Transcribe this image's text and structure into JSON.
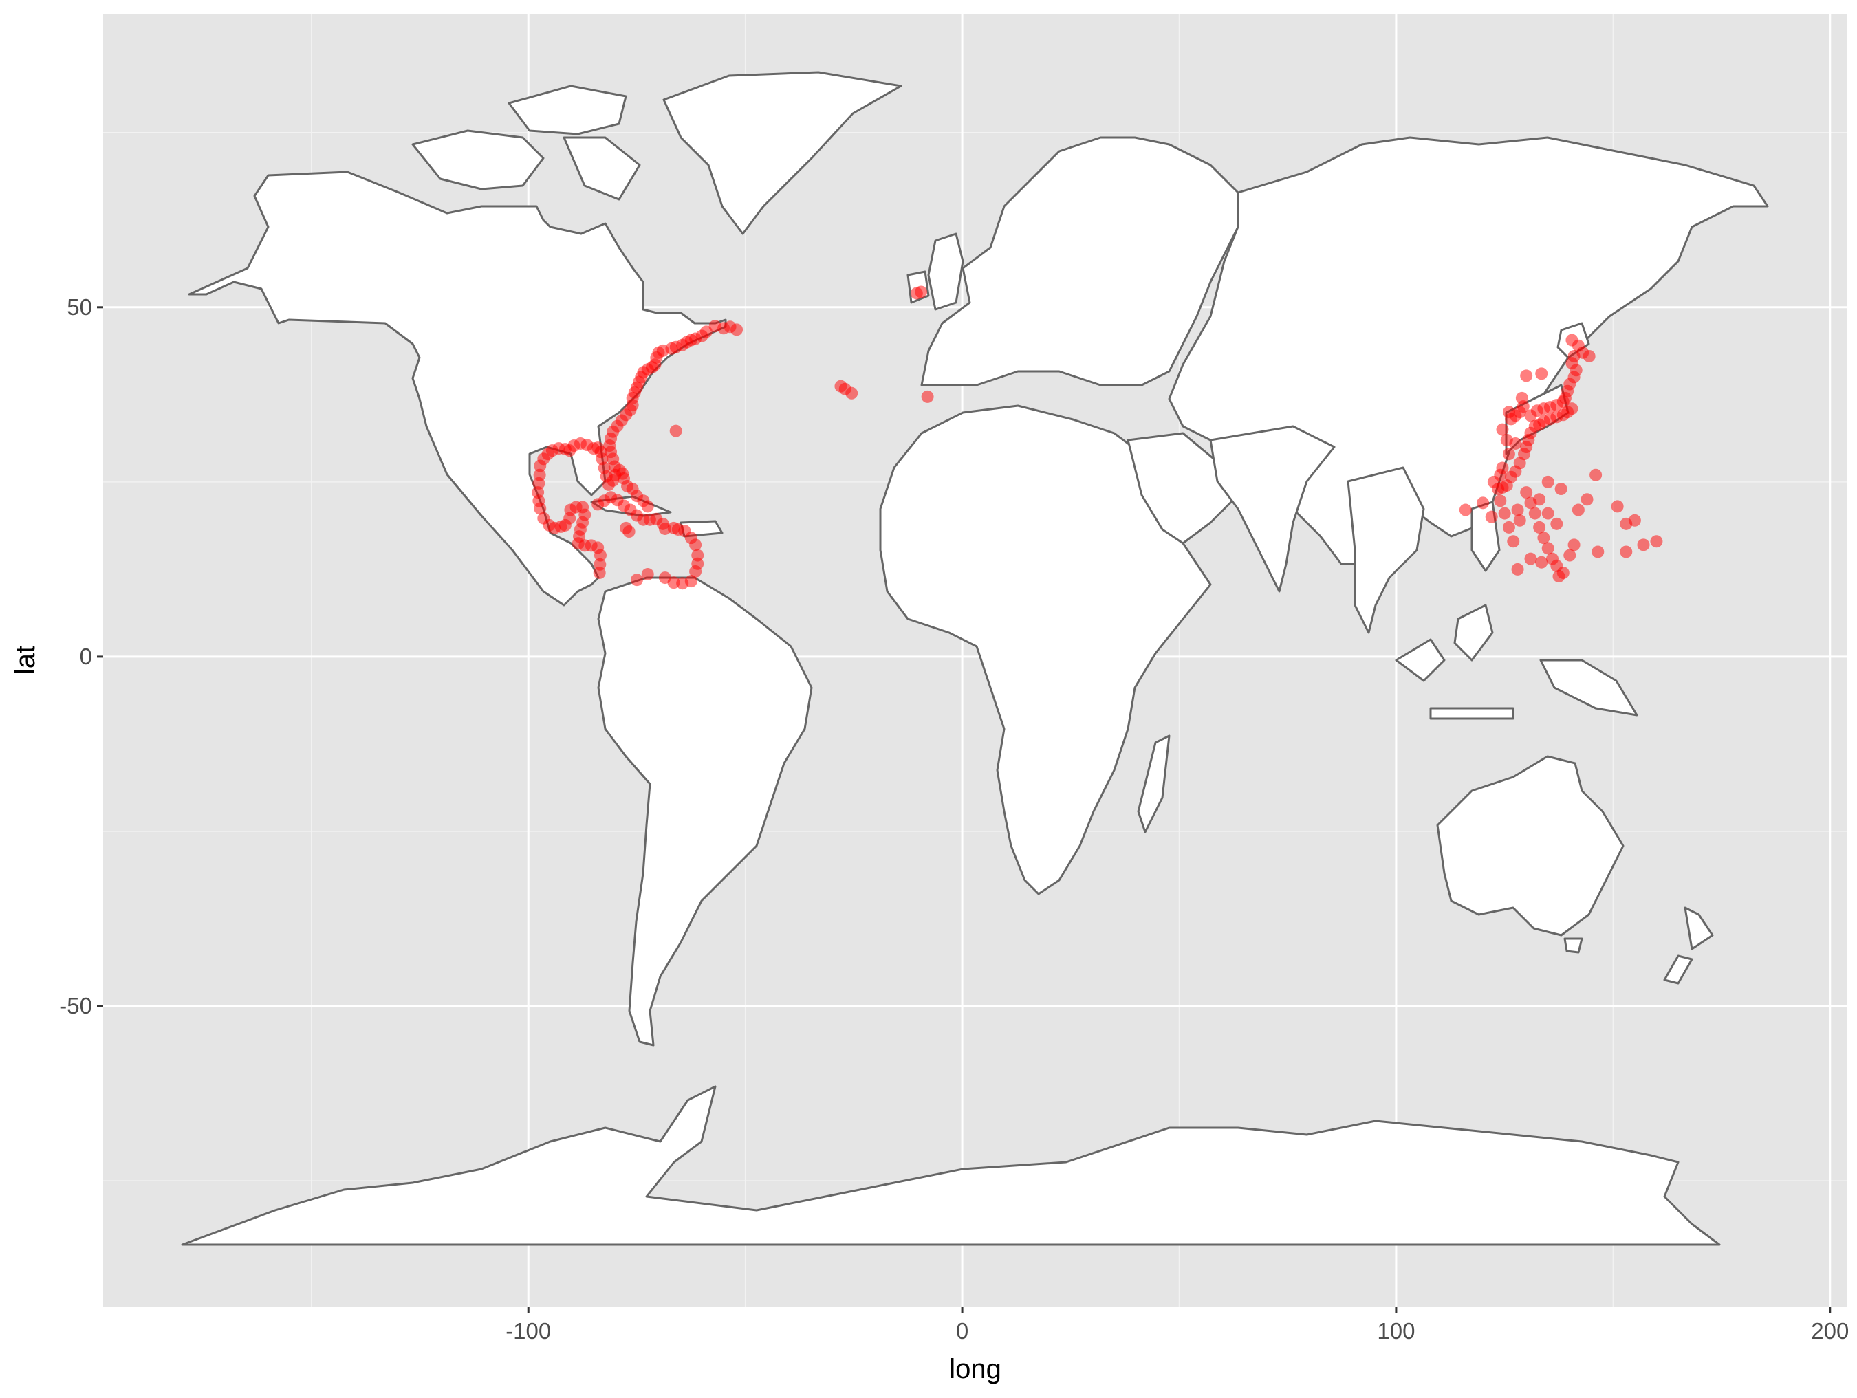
{
  "chart_data": {
    "type": "scatter",
    "title": "",
    "xlabel": "long",
    "ylabel": "lat",
    "xlim": [
      -198,
      204
    ],
    "ylim": [
      -93,
      92
    ],
    "x_ticks": [
      -100,
      0,
      100,
      200
    ],
    "x_tick_labels": [
      "-100",
      "0",
      "100",
      "200"
    ],
    "y_ticks": [
      -50,
      0,
      50
    ],
    "y_tick_labels": [
      "-50",
      "0",
      "50"
    ],
    "grid": true,
    "legend": "none",
    "panel_color": "#e5e5e5",
    "land_fill": "#ffffff",
    "border_color": "#666666",
    "point_color": "#ff0000",
    "point_opacity": 0.5,
    "basemap": "world country polygons",
    "points": [
      {
        "x": -66,
        "y": 32.3
      },
      {
        "x": -10.5,
        "y": 52
      },
      {
        "x": -9.5,
        "y": 52.2
      },
      {
        "x": -8,
        "y": 37.2
      },
      {
        "x": -28,
        "y": 38.7
      },
      {
        "x": -27,
        "y": 38.3
      },
      {
        "x": -25.5,
        "y": 37.7
      },
      {
        "x": -52,
        "y": 46.8
      },
      {
        "x": -53.5,
        "y": 47.2
      },
      {
        "x": -55,
        "y": 47
      },
      {
        "x": -57,
        "y": 47.3
      },
      {
        "x": -59,
        "y": 46.5
      },
      {
        "x": -60,
        "y": 45.9
      },
      {
        "x": -61.5,
        "y": 45.5
      },
      {
        "x": -62.5,
        "y": 45.3
      },
      {
        "x": -63.5,
        "y": 45
      },
      {
        "x": -64.5,
        "y": 44.6
      },
      {
        "x": -66,
        "y": 44.3
      },
      {
        "x": -67,
        "y": 44.1
      },
      {
        "x": -69,
        "y": 43.8
      },
      {
        "x": -70,
        "y": 43.5
      },
      {
        "x": -70.5,
        "y": 42.8
      },
      {
        "x": -70.8,
        "y": 41.8
      },
      {
        "x": -71.5,
        "y": 41.4
      },
      {
        "x": -72.5,
        "y": 41.1
      },
      {
        "x": -73.5,
        "y": 40.7
      },
      {
        "x": -74,
        "y": 40
      },
      {
        "x": -74.5,
        "y": 39.3
      },
      {
        "x": -75,
        "y": 38.5
      },
      {
        "x": -75.5,
        "y": 37.8
      },
      {
        "x": -76,
        "y": 37
      },
      {
        "x": -76,
        "y": 36
      },
      {
        "x": -76.5,
        "y": 35.3
      },
      {
        "x": -77.5,
        "y": 34.6
      },
      {
        "x": -78.5,
        "y": 33.8
      },
      {
        "x": -79.5,
        "y": 33
      },
      {
        "x": -80.5,
        "y": 32.2
      },
      {
        "x": -81,
        "y": 31.2
      },
      {
        "x": -81.3,
        "y": 30.2
      },
      {
        "x": -81,
        "y": 29.3
      },
      {
        "x": -80.5,
        "y": 28.3
      },
      {
        "x": -80.1,
        "y": 27.2
      },
      {
        "x": -80,
        "y": 26
      },
      {
        "x": -80.5,
        "y": 25.2
      },
      {
        "x": -81.5,
        "y": 24.6
      },
      {
        "x": -82,
        "y": 25.8
      },
      {
        "x": -82.5,
        "y": 27
      },
      {
        "x": -83,
        "y": 28.3
      },
      {
        "x": -83.3,
        "y": 29.3
      },
      {
        "x": -84,
        "y": 29.9
      },
      {
        "x": -85,
        "y": 29.8
      },
      {
        "x": -86.5,
        "y": 30.3
      },
      {
        "x": -88,
        "y": 30.5
      },
      {
        "x": -89.5,
        "y": 30.2
      },
      {
        "x": -90.5,
        "y": 29.5
      },
      {
        "x": -91.5,
        "y": 29.7
      },
      {
        "x": -93,
        "y": 29.8
      },
      {
        "x": -94.5,
        "y": 29.5
      },
      {
        "x": -95.5,
        "y": 29
      },
      {
        "x": -96.5,
        "y": 28.3
      },
      {
        "x": -97.3,
        "y": 27.3
      },
      {
        "x": -97.4,
        "y": 26
      },
      {
        "x": -97.6,
        "y": 24.8
      },
      {
        "x": -97.8,
        "y": 23.5
      },
      {
        "x": -97.6,
        "y": 22.3
      },
      {
        "x": -97.3,
        "y": 21.2
      },
      {
        "x": -96.5,
        "y": 19.8
      },
      {
        "x": -95.2,
        "y": 18.8
      },
      {
        "x": -94,
        "y": 18.4
      },
      {
        "x": -92.5,
        "y": 18.6
      },
      {
        "x": -91.5,
        "y": 18.8
      },
      {
        "x": -90.5,
        "y": 19.8
      },
      {
        "x": -90.3,
        "y": 21
      },
      {
        "x": -89,
        "y": 21.4
      },
      {
        "x": -87.5,
        "y": 21.4
      },
      {
        "x": -87,
        "y": 20.3
      },
      {
        "x": -87.5,
        "y": 19.2
      },
      {
        "x": -88,
        "y": 18.2
      },
      {
        "x": -88.3,
        "y": 17.2
      },
      {
        "x": -88.5,
        "y": 16.2
      },
      {
        "x": -87,
        "y": 15.9
      },
      {
        "x": -85.5,
        "y": 15.9
      },
      {
        "x": -84,
        "y": 15.6
      },
      {
        "x": -83.4,
        "y": 14.5
      },
      {
        "x": -83.5,
        "y": 13.2
      },
      {
        "x": -83.6,
        "y": 12
      },
      {
        "x": -84,
        "y": 21.8
      },
      {
        "x": -82.5,
        "y": 22.3
      },
      {
        "x": -81,
        "y": 22.8
      },
      {
        "x": -79.5,
        "y": 22.4
      },
      {
        "x": -78,
        "y": 21.6
      },
      {
        "x": -76.5,
        "y": 21
      },
      {
        "x": -75,
        "y": 20.2
      },
      {
        "x": -77.5,
        "y": 18.4
      },
      {
        "x": -76.8,
        "y": 17.9
      },
      {
        "x": -73.5,
        "y": 19.6
      },
      {
        "x": -72,
        "y": 19.6
      },
      {
        "x": -70.5,
        "y": 19.7
      },
      {
        "x": -69,
        "y": 19
      },
      {
        "x": -68.5,
        "y": 18.3
      },
      {
        "x": -66.5,
        "y": 18.4
      },
      {
        "x": -65.5,
        "y": 18.2
      },
      {
        "x": -64,
        "y": 18
      },
      {
        "x": -62.5,
        "y": 17
      },
      {
        "x": -61.5,
        "y": 16
      },
      {
        "x": -61,
        "y": 14.5
      },
      {
        "x": -61,
        "y": 13.3
      },
      {
        "x": -61.5,
        "y": 12.2
      },
      {
        "x": -62.5,
        "y": 10.8
      },
      {
        "x": -64.5,
        "y": 10.5
      },
      {
        "x": -66.5,
        "y": 10.6
      },
      {
        "x": -68.5,
        "y": 11.3
      },
      {
        "x": -72.5,
        "y": 11.8
      },
      {
        "x": -75,
        "y": 11
      },
      {
        "x": -78,
        "y": 25.5
      },
      {
        "x": -77.2,
        "y": 24.4
      },
      {
        "x": -76,
        "y": 24
      },
      {
        "x": -75,
        "y": 23
      },
      {
        "x": -73.5,
        "y": 22.3
      },
      {
        "x": -72.5,
        "y": 21.5
      },
      {
        "x": -79,
        "y": 26.7
      },
      {
        "x": -78.3,
        "y": 26.2
      },
      {
        "x": 140.5,
        "y": 45.3
      },
      {
        "x": 142,
        "y": 44.5
      },
      {
        "x": 143,
        "y": 43.5
      },
      {
        "x": 144.5,
        "y": 43
      },
      {
        "x": 141,
        "y": 43
      },
      {
        "x": 140.5,
        "y": 42
      },
      {
        "x": 141.5,
        "y": 41
      },
      {
        "x": 141,
        "y": 40
      },
      {
        "x": 140,
        "y": 39
      },
      {
        "x": 139.5,
        "y": 38
      },
      {
        "x": 139,
        "y": 37
      },
      {
        "x": 138.5,
        "y": 36.5
      },
      {
        "x": 137,
        "y": 36
      },
      {
        "x": 135.5,
        "y": 35.7
      },
      {
        "x": 134,
        "y": 35.5
      },
      {
        "x": 132.5,
        "y": 35.2
      },
      {
        "x": 131,
        "y": 34.5
      },
      {
        "x": 140.5,
        "y": 35.5
      },
      {
        "x": 139.5,
        "y": 35
      },
      {
        "x": 138.5,
        "y": 34.6
      },
      {
        "x": 137,
        "y": 34.3
      },
      {
        "x": 135.5,
        "y": 34
      },
      {
        "x": 134,
        "y": 33.7
      },
      {
        "x": 133,
        "y": 33.2
      },
      {
        "x": 132,
        "y": 33
      },
      {
        "x": 131,
        "y": 32
      },
      {
        "x": 130.5,
        "y": 31
      },
      {
        "x": 130,
        "y": 30
      },
      {
        "x": 129.5,
        "y": 29
      },
      {
        "x": 128.5,
        "y": 27.7
      },
      {
        "x": 127.5,
        "y": 26.5
      },
      {
        "x": 126.5,
        "y": 25.7
      },
      {
        "x": 125.5,
        "y": 24.5
      },
      {
        "x": 124.5,
        "y": 24.2
      },
      {
        "x": 123.5,
        "y": 24
      },
      {
        "x": 126,
        "y": 35
      },
      {
        "x": 126.5,
        "y": 34
      },
      {
        "x": 127.5,
        "y": 34.5
      },
      {
        "x": 128.5,
        "y": 35
      },
      {
        "x": 129.3,
        "y": 35.8
      },
      {
        "x": 129,
        "y": 37
      },
      {
        "x": 130,
        "y": 40.2
      },
      {
        "x": 133.5,
        "y": 40.5
      },
      {
        "x": 124.5,
        "y": 32.5
      },
      {
        "x": 125.5,
        "y": 31
      },
      {
        "x": 126,
        "y": 29
      },
      {
        "x": 124.5,
        "y": 27
      },
      {
        "x": 122.5,
        "y": 25
      },
      {
        "x": 116,
        "y": 21
      },
      {
        "x": 120,
        "y": 22
      },
      {
        "x": 122,
        "y": 20
      },
      {
        "x": 124,
        "y": 22.3
      },
      {
        "x": 125,
        "y": 20.5
      },
      {
        "x": 126,
        "y": 18.5
      },
      {
        "x": 127,
        "y": 16.5
      },
      {
        "x": 128.5,
        "y": 19.5
      },
      {
        "x": 128,
        "y": 21
      },
      {
        "x": 130,
        "y": 23.5
      },
      {
        "x": 131,
        "y": 22
      },
      {
        "x": 132,
        "y": 20.5
      },
      {
        "x": 133,
        "y": 18.5
      },
      {
        "x": 134,
        "y": 17
      },
      {
        "x": 135,
        "y": 15.5
      },
      {
        "x": 136,
        "y": 14
      },
      {
        "x": 137,
        "y": 13
      },
      {
        "x": 137.5,
        "y": 11.5
      },
      {
        "x": 138.5,
        "y": 12
      },
      {
        "x": 140,
        "y": 14.5
      },
      {
        "x": 141,
        "y": 16
      },
      {
        "x": 137,
        "y": 19
      },
      {
        "x": 135,
        "y": 20.5
      },
      {
        "x": 133,
        "y": 22.5
      },
      {
        "x": 135,
        "y": 25
      },
      {
        "x": 138,
        "y": 24
      },
      {
        "x": 142,
        "y": 21
      },
      {
        "x": 144,
        "y": 22.5
      },
      {
        "x": 146,
        "y": 26
      },
      {
        "x": 146.5,
        "y": 15
      },
      {
        "x": 151,
        "y": 21.5
      },
      {
        "x": 153,
        "y": 19
      },
      {
        "x": 155,
        "y": 19.5
      },
      {
        "x": 153,
        "y": 15
      },
      {
        "x": 157,
        "y": 16
      },
      {
        "x": 160,
        "y": 16.5
      },
      {
        "x": 131,
        "y": 14
      },
      {
        "x": 133.5,
        "y": 13.5
      },
      {
        "x": 128,
        "y": 12.5
      },
      {
        "x": 124,
        "y": 26
      },
      {
        "x": 127.5,
        "y": 30.5
      }
    ]
  }
}
